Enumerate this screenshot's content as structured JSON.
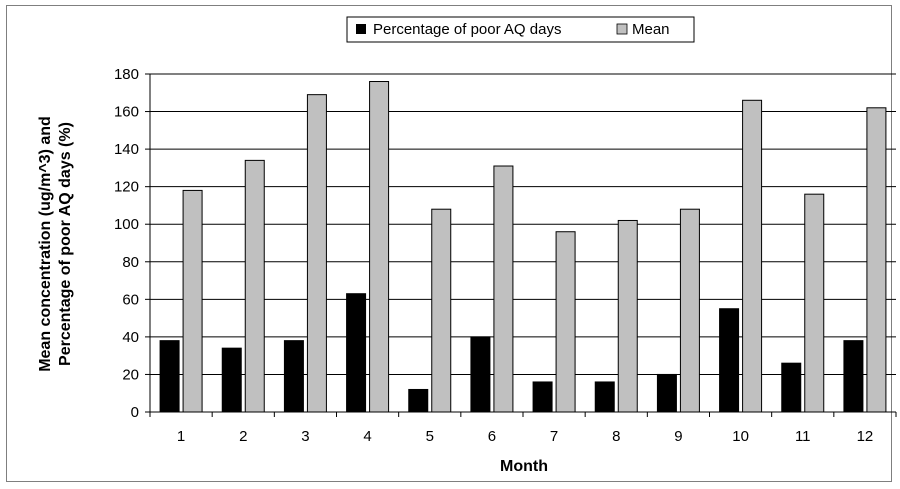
{
  "chart_data": {
    "type": "bar",
    "categories": [
      "1",
      "2",
      "3",
      "4",
      "5",
      "6",
      "7",
      "8",
      "9",
      "10",
      "11",
      "12"
    ],
    "series": [
      {
        "name": "Percentage of poor AQ days",
        "values": [
          38,
          34,
          38,
          63,
          12,
          40,
          16,
          16,
          20,
          55,
          26,
          38
        ],
        "color": "#000000"
      },
      {
        "name": "Mean",
        "values": [
          118,
          134,
          169,
          176,
          108,
          131,
          96,
          102,
          108,
          166,
          116,
          162
        ],
        "color": "#c0c0c0"
      }
    ],
    "title": "",
    "xlabel": "Month",
    "ylabel": "Mean concentration (ug/m^3) and Percentage of poor AQ days (%)",
    "ylabel_lines": [
      "Mean concentration (ug/m^3) and",
      "Percentage of poor AQ days (%)"
    ],
    "ylim": [
      0,
      180
    ],
    "yticks": [
      0,
      20,
      40,
      60,
      80,
      100,
      120,
      140,
      160,
      180
    ],
    "grid": true,
    "legend_position": "top-center"
  }
}
